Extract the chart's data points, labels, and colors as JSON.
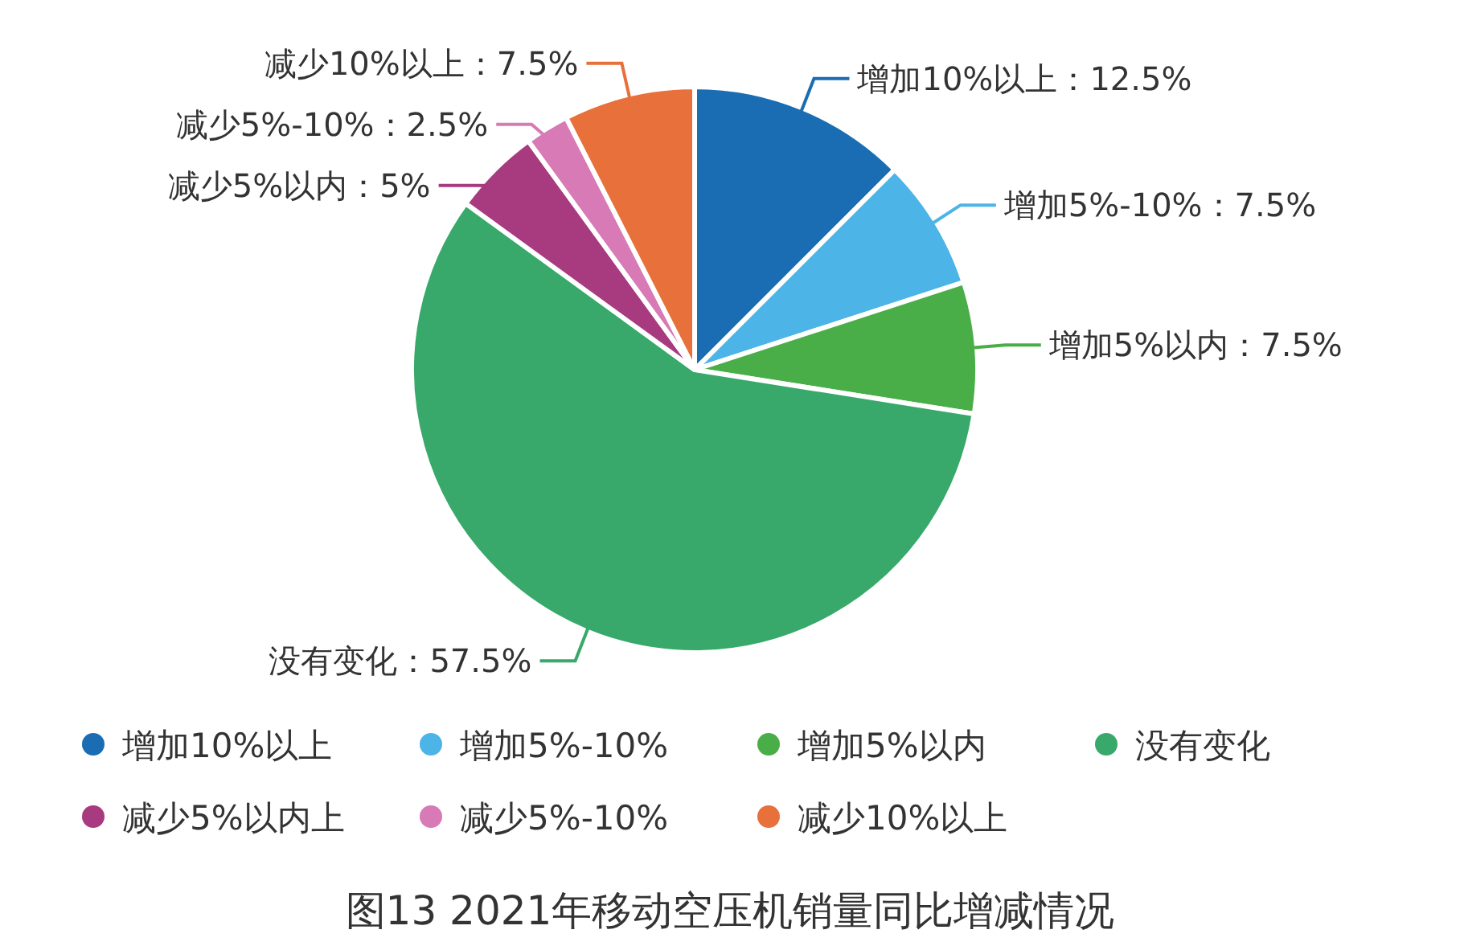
{
  "chart_data": {
    "type": "pie",
    "title": "图13 2021年移动空压机销量同比增减情况",
    "categories": [
      "增加10%以上",
      "增加5%-10%",
      "增加5%以内",
      "没有变化",
      "减少5%以内上",
      "减少5%-10%",
      "减少10%以上"
    ],
    "values": [
      12.5,
      7.5,
      7.5,
      57.5,
      5,
      2.5,
      7.5
    ],
    "colors": [
      "#1a6db3",
      "#4cb4e6",
      "#4aae48",
      "#38a96a",
      "#a83a80",
      "#d77ab6",
      "#e8703a"
    ],
    "value_labels": [
      "增加10%以上：12.5%",
      "增加5%-10%：7.5%",
      "增加5%以内：7.5%",
      "没有变化：57.5%",
      "减少5%以内：5%",
      "减少5%-10%：2.5%",
      "减少10%以上：7.5%"
    ],
    "legend": "bottom"
  }
}
